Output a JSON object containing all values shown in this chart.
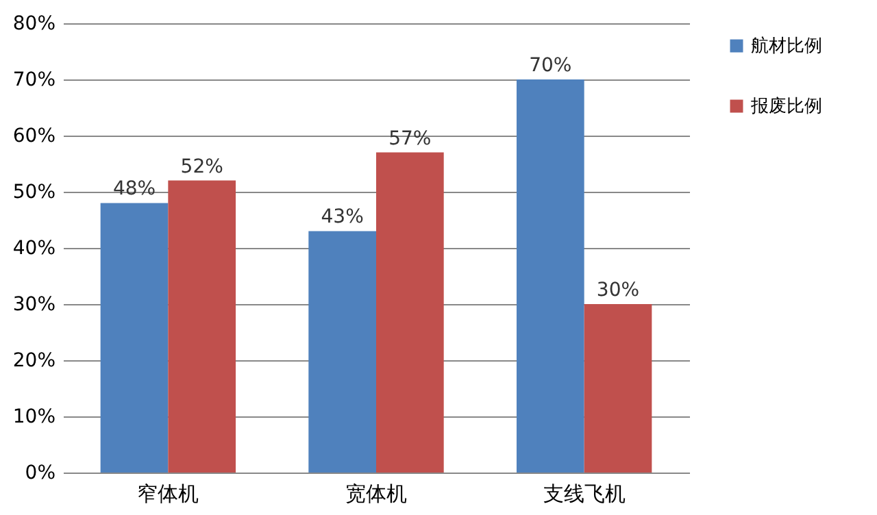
{
  "chart_data": {
    "type": "bar",
    "categories": [
      "窄体机",
      "宽体机",
      "支线飞机"
    ],
    "series": [
      {
        "name": "航材比例",
        "color": "#4f81bd",
        "values": [
          48,
          43,
          70
        ],
        "value_labels": [
          "48%",
          "43%",
          "70%"
        ]
      },
      {
        "name": "报废比例",
        "color": "#c0504d",
        "values": [
          52,
          57,
          30
        ],
        "value_labels": [
          "52%",
          "57%",
          "30%"
        ]
      }
    ],
    "ylim": [
      0,
      80
    ],
    "yticks": [
      {
        "value": 0,
        "label": "0%"
      },
      {
        "value": 10,
        "label": "10%"
      },
      {
        "value": 20,
        "label": "20%"
      },
      {
        "value": 30,
        "label": "30%"
      },
      {
        "value": 40,
        "label": "40%"
      },
      {
        "value": 50,
        "label": "50%"
      },
      {
        "value": 60,
        "label": "60%"
      },
      {
        "value": 70,
        "label": "70%"
      },
      {
        "value": 80,
        "label": "80%"
      }
    ],
    "grid": "y",
    "legend": "right"
  }
}
